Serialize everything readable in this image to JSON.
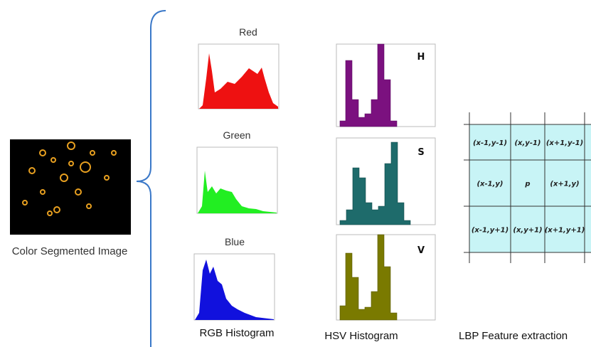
{
  "input": {
    "label": "Color Segmented Image"
  },
  "rgb": {
    "red": "Red",
    "green": "Green",
    "blue": "Blue",
    "caption": "RGB Histogram"
  },
  "hsv": {
    "h": "H",
    "s": "S",
    "v": "V",
    "caption": "HSV Histogram"
  },
  "lbp": {
    "cells": [
      [
        "(x-1,y-1)",
        "(x,y-1)",
        "(x+1,y-1)"
      ],
      [
        "(x-1,y)",
        "p",
        "(x+1,y)"
      ],
      [
        "(x-1,y+1)",
        "(x,y+1)",
        "(x+1,y+1)"
      ]
    ],
    "caption": "LBP Feature extraction"
  }
}
